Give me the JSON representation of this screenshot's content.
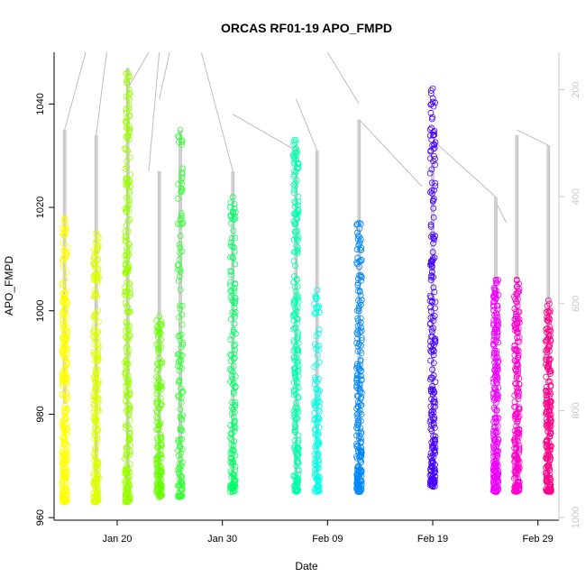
{
  "chart_data": {
    "type": "scatter",
    "title": "ORCAS RF01-19 APO_FMPD",
    "xlabel": "Date",
    "ylabel": "APO_FMPD",
    "xlim": [
      "2016-01-14",
      "2016-03-02"
    ],
    "ylim": [
      959.5,
      1050
    ],
    "x_ticks": [
      {
        "date": "2016-01-20",
        "label": "Jan 20"
      },
      {
        "date": "2016-01-30",
        "label": "Jan 30"
      },
      {
        "date": "2016-02-09",
        "label": "Feb 09"
      },
      {
        "date": "2016-02-19",
        "label": "Feb 19"
      },
      {
        "date": "2016-02-29",
        "label": "Feb 29"
      }
    ],
    "y_ticks": [
      960,
      980,
      1000,
      1020,
      1040
    ],
    "right_axis": {
      "ticks": [
        200,
        400,
        600,
        800,
        1000
      ],
      "range": [
        130,
        1005
      ],
      "inverted": true,
      "color": "#c8c8c8",
      "description": "flight profile trace, increasing downward"
    },
    "point_style": "open circle",
    "grid": false,
    "legend": "none",
    "flights": [
      {
        "date": "2016-01-15",
        "color": "#ffff00",
        "n": 260,
        "y_min": 963,
        "y_max": 1018,
        "trace_top": 1035,
        "trace_bottom": 982
      },
      {
        "date": "2016-01-18",
        "color": "#ddff00",
        "n": 220,
        "y_min": 963,
        "y_max": 1015,
        "trace_top": 1034,
        "trace_bottom": 965
      },
      {
        "date": "2016-01-21",
        "color": "#99ff00",
        "n": 260,
        "y_min": 963,
        "y_max": 1046,
        "trace_top": 1047,
        "trace_bottom": 964
      },
      {
        "date": "2016-01-24",
        "color": "#66ff00",
        "n": 150,
        "y_min": 964,
        "y_max": 999,
        "trace_top": 1027,
        "trace_bottom": 965
      },
      {
        "date": "2016-01-26",
        "color": "#33ff33",
        "n": 130,
        "y_min": 964,
        "y_max": 1035,
        "trace_top": 1035,
        "trace_bottom": 966
      },
      {
        "date": "2016-01-31",
        "color": "#00ff66",
        "n": 150,
        "y_min": 965,
        "y_max": 1022,
        "trace_top": 1027,
        "trace_bottom": 965
      },
      {
        "date": "2016-02-06",
        "color": "#00ffaa",
        "n": 230,
        "y_min": 965,
        "y_max": 1033,
        "trace_top": 1032,
        "trace_bottom": 966
      },
      {
        "date": "2016-02-08",
        "color": "#00ffe6",
        "n": 120,
        "y_min": 965,
        "y_max": 1004,
        "trace_top": 1031,
        "trace_bottom": 966
      },
      {
        "date": "2016-02-12",
        "color": "#0088ff",
        "n": 220,
        "y_min": 965,
        "y_max": 1017,
        "trace_top": 1037,
        "trace_bottom": 966
      },
      {
        "date": "2016-02-19",
        "color": "#4400ff",
        "n": 220,
        "y_min": 966,
        "y_max": 1043,
        "trace_top": 1030,
        "trace_bottom": 967
      },
      {
        "date": "2016-02-25",
        "color": "#ee00ff",
        "n": 240,
        "y_min": 965,
        "y_max": 1006,
        "trace_top": 1022,
        "trace_bottom": 966
      },
      {
        "date": "2016-02-27",
        "color": "#ff00cc",
        "n": 220,
        "y_min": 965,
        "y_max": 1006,
        "trace_top": 1034,
        "trace_bottom": 966
      },
      {
        "date": "2016-03-01",
        "color": "#ff0088",
        "n": 210,
        "y_min": 965,
        "y_max": 1002,
        "trace_top": 1032,
        "trace_bottom": 966
      }
    ],
    "transit_lines": [
      {
        "from": [
          "2016-01-15",
          1035
        ],
        "to": [
          "2016-01-17",
          1050
        ]
      },
      {
        "from": [
          "2016-01-18",
          1034
        ],
        "to": [
          "2016-01-19",
          1050
        ]
      },
      {
        "from": [
          "2016-01-21",
          1043
        ],
        "to": [
          "2016-01-23",
          1050
        ]
      },
      {
        "from": [
          "2016-01-23",
          1027
        ],
        "to": [
          "2016-01-24",
          1050
        ]
      },
      {
        "from": [
          "2016-01-24",
          1041
        ],
        "to": [
          "2016-01-25",
          1050
        ]
      },
      {
        "from": [
          "2016-01-28",
          1050
        ],
        "to": [
          "2016-01-31",
          1027
        ]
      },
      {
        "from": [
          "2016-01-31",
          1038
        ],
        "to": [
          "2016-02-06",
          1031
        ]
      },
      {
        "from": [
          "2016-02-06",
          1041
        ],
        "to": [
          "2016-02-08",
          1031
        ]
      },
      {
        "from": [
          "2016-02-09",
          1050
        ],
        "to": [
          "2016-02-12",
          1040
        ]
      },
      {
        "from": [
          "2016-02-12",
          1037
        ],
        "to": [
          "2016-02-18",
          1024
        ]
      },
      {
        "from": [
          "2016-02-19",
          1033
        ],
        "to": [
          "2016-02-25",
          1022
        ]
      },
      {
        "from": [
          "2016-02-25",
          1021
        ],
        "to": [
          "2016-02-26",
          1017
        ]
      },
      {
        "from": [
          "2016-02-27",
          1035
        ],
        "to": [
          "2016-03-01",
          1032
        ]
      }
    ]
  }
}
